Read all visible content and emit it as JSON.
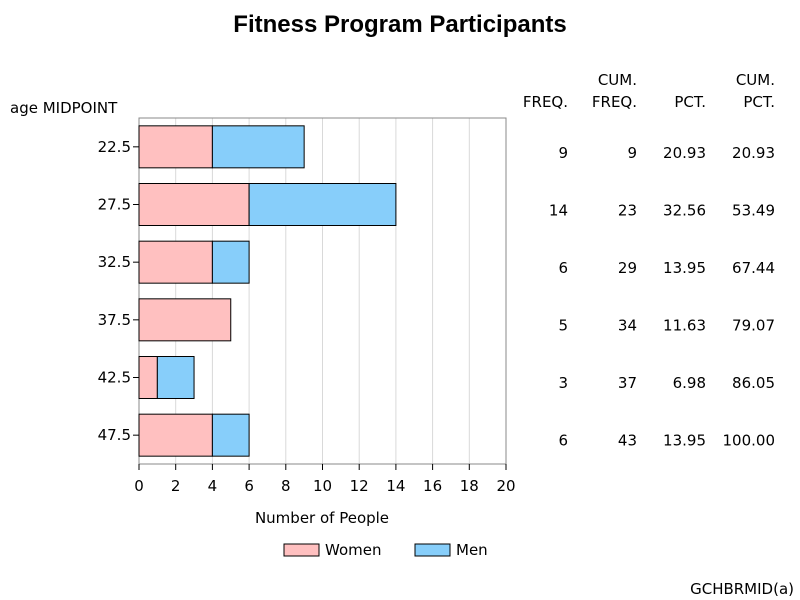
{
  "chart_data": {
    "type": "bar",
    "orientation": "horizontal",
    "stacked": true,
    "title": "Fitness Program Participants",
    "ylabel": "age MIDPOINT",
    "xlabel": "Number of People",
    "categories": [
      "22.5",
      "27.5",
      "32.5",
      "37.5",
      "42.5",
      "47.5"
    ],
    "series": [
      {
        "name": "Women",
        "values": [
          4,
          6,
          4,
          5,
          1,
          4
        ],
        "color": "#ffc0c0"
      },
      {
        "name": "Men",
        "values": [
          5,
          8,
          2,
          0,
          2,
          2
        ],
        "color": "#87cefa"
      }
    ],
    "xlim": [
      0,
      20
    ],
    "xticks": [
      "0",
      "2",
      "4",
      "6",
      "8",
      "10",
      "12",
      "14",
      "16",
      "18",
      "20"
    ],
    "grid": "vertical",
    "legend": "bottom",
    "stats_table": {
      "headers": [
        [
          "",
          "FREQ."
        ],
        [
          "CUM.",
          "FREQ."
        ],
        [
          "",
          "PCT."
        ],
        [
          "CUM.",
          "PCT."
        ]
      ],
      "rows": [
        [
          "9",
          "9",
          "20.93",
          "20.93"
        ],
        [
          "14",
          "23",
          "32.56",
          "53.49"
        ],
        [
          "6",
          "29",
          "13.95",
          "67.44"
        ],
        [
          "5",
          "34",
          "11.63",
          "79.07"
        ],
        [
          "3",
          "37",
          "6.98",
          "86.05"
        ],
        [
          "6",
          "43",
          "13.95",
          "100.00"
        ]
      ]
    }
  },
  "footnote": "GCHBRMID(a)"
}
